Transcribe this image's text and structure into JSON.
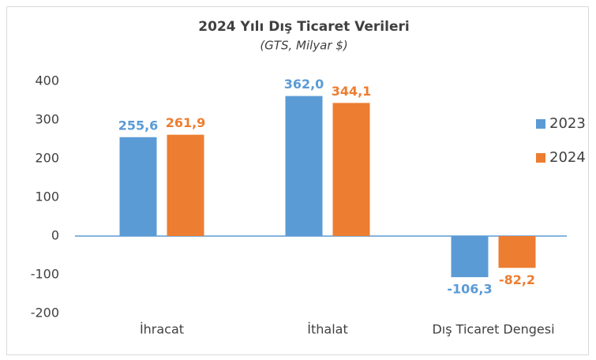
{
  "chart_data": {
    "type": "bar",
    "title": "2024 Yılı Dış Ticaret Verileri",
    "subtitle": "(GTS, Milyar $)",
    "categories": [
      "İhracat",
      "İthalat",
      "Dış Ticaret Dengesi"
    ],
    "series": [
      {
        "name": "2023",
        "color": "#5b9bd5",
        "values": [
          255.6,
          362.0,
          -106.3
        ],
        "value_labels": [
          "255,6",
          "362,0",
          "-106,3"
        ]
      },
      {
        "name": "2024",
        "color": "#ed7d31",
        "values": [
          261.9,
          344.1,
          -82.2
        ],
        "value_labels": [
          "261,9",
          "344,1",
          "-82,2"
        ]
      }
    ],
    "ylim": [
      -200,
      400
    ],
    "yticks": [
      -200,
      -100,
      0,
      100,
      200,
      300,
      400
    ],
    "grid": false,
    "legend": "right"
  }
}
